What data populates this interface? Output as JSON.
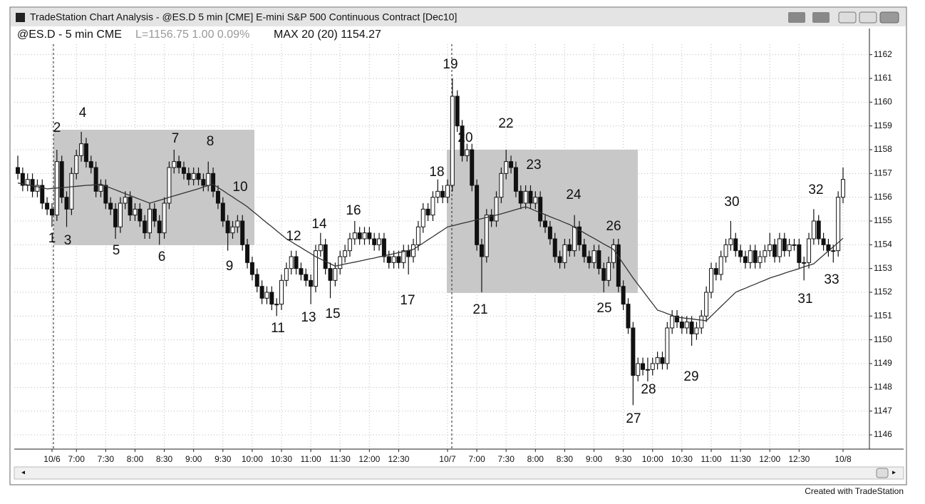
{
  "window_title": "TradeStation Chart Analysis - @ES.D 5 min [CME] E-mini S&P 500 Continuous Contract [Dec10]",
  "footer": "Created with TradeStation",
  "chart_data": {
    "type": "candlestick",
    "legend_symbol": "@ES.D - 5 min CME",
    "legend_last": "L=1156.75 1.00 0.09%",
    "up_color": "#ffffff",
    "down_color": "#111111",
    "ylim": [
      1145.4,
      1163.1
    ],
    "yticks": [
      1146,
      1147,
      1148,
      1149,
      1150,
      1151,
      1152,
      1153,
      1154,
      1155,
      1156,
      1157,
      1158,
      1159,
      1160,
      1161,
      1162
    ],
    "grid": true,
    "categories": [
      null,
      null,
      null,
      null,
      null,
      null,
      null,
      "10/6",
      null,
      null,
      null,
      null,
      "7:00",
      null,
      null,
      null,
      null,
      null,
      "7:30",
      null,
      null,
      null,
      null,
      null,
      "8:00",
      null,
      null,
      null,
      null,
      null,
      "8:30",
      null,
      null,
      null,
      null,
      null,
      "9:00",
      null,
      null,
      null,
      null,
      null,
      "9:30",
      null,
      null,
      null,
      null,
      null,
      "10:00",
      null,
      null,
      null,
      null,
      null,
      "10:30",
      null,
      null,
      null,
      null,
      null,
      "11:00",
      null,
      null,
      null,
      null,
      null,
      "11:30",
      null,
      null,
      null,
      null,
      null,
      "12:00",
      null,
      null,
      null,
      null,
      null,
      "12:30",
      null,
      null,
      null,
      null,
      null,
      null,
      null,
      null,
      null,
      "10/7",
      null,
      null,
      null,
      null,
      null,
      "7:00",
      null,
      null,
      null,
      null,
      null,
      "7:30",
      null,
      null,
      null,
      null,
      null,
      "8:00",
      null,
      null,
      null,
      null,
      null,
      "8:30",
      null,
      null,
      null,
      null,
      null,
      "9:00",
      null,
      null,
      null,
      null,
      null,
      "9:30",
      null,
      null,
      null,
      null,
      null,
      "10:00",
      null,
      null,
      null,
      null,
      null,
      "10:30",
      null,
      null,
      null,
      null,
      null,
      "11:00",
      null,
      null,
      null,
      null,
      null,
      "11:30",
      null,
      null,
      null,
      null,
      null,
      "12:00",
      null,
      null,
      null,
      null,
      null,
      "12:30",
      null,
      null,
      null,
      null,
      null,
      null,
      null,
      null,
      "10/8"
    ],
    "ohlc": [
      [
        1157.25,
        1157.75,
        1156.75,
        1157
      ],
      [
        1157,
        1157.25,
        1156.25,
        1156.5
      ],
      [
        1156.5,
        1157,
        1156.25,
        1156.75
      ],
      [
        1156.75,
        1157,
        1156,
        1156.25
      ],
      [
        1156.25,
        1156.75,
        1156,
        1156.5
      ],
      [
        1156.5,
        1156.75,
        1155.5,
        1155.75
      ],
      [
        1155.75,
        1156,
        1155.25,
        1155.5
      ],
      [
        1155.5,
        1155.75,
        1154.75,
        1155.25
      ],
      [
        1155.25,
        1158,
        1155,
        1157.5
      ],
      [
        1157.5,
        1157.75,
        1155.75,
        1156
      ],
      [
        1156,
        1156.25,
        1154.75,
        1155.5
      ],
      [
        1155.5,
        1157.25,
        1155.25,
        1157
      ],
      [
        1157,
        1158,
        1156.75,
        1157.75
      ],
      [
        1157.75,
        1158.75,
        1157.5,
        1158.25
      ],
      [
        1158.25,
        1158.5,
        1157.25,
        1157.5
      ],
      [
        1157.5,
        1157.75,
        1157,
        1157.25
      ],
      [
        1157.25,
        1157.5,
        1156,
        1156.25
      ],
      [
        1156.25,
        1156.75,
        1156,
        1156.5
      ],
      [
        1156.5,
        1156.75,
        1155.5,
        1155.75
      ],
      [
        1155.75,
        1156,
        1155.25,
        1155.5
      ],
      [
        1155.5,
        1155.75,
        1154.25,
        1154.75
      ],
      [
        1154.75,
        1156,
        1154.5,
        1155.75
      ],
      [
        1155.75,
        1156.25,
        1155.5,
        1156
      ],
      [
        1156,
        1156.25,
        1155,
        1155.25
      ],
      [
        1155.25,
        1155.75,
        1155,
        1155.5
      ],
      [
        1155.5,
        1155.75,
        1154.75,
        1155
      ],
      [
        1155,
        1155.25,
        1154.25,
        1154.5
      ],
      [
        1154.5,
        1155.75,
        1154.25,
        1155.5
      ],
      [
        1155.5,
        1155.75,
        1154.75,
        1155
      ],
      [
        1155,
        1155.25,
        1154,
        1154.5
      ],
      [
        1154.5,
        1156,
        1154.25,
        1155.75
      ],
      [
        1155.75,
        1157.5,
        1155.5,
        1157.25
      ],
      [
        1157.25,
        1158,
        1157,
        1157.5
      ],
      [
        1157.5,
        1157.75,
        1157,
        1157.25
      ],
      [
        1157.25,
        1157.5,
        1156.75,
        1157
      ],
      [
        1157,
        1157.25,
        1156.5,
        1156.75
      ],
      [
        1156.75,
        1157.25,
        1156.5,
        1157
      ],
      [
        1157,
        1157.25,
        1156.5,
        1156.75
      ],
      [
        1156.75,
        1157,
        1156.25,
        1156.5
      ],
      [
        1156.5,
        1157.5,
        1156.25,
        1157
      ],
      [
        1157,
        1157.25,
        1156,
        1156.25
      ],
      [
        1156.25,
        1156.5,
        1155.5,
        1155.75
      ],
      [
        1155.75,
        1156,
        1154.75,
        1155
      ],
      [
        1155,
        1155.25,
        1153.75,
        1154.5
      ],
      [
        1154.5,
        1155,
        1154.25,
        1154.75
      ],
      [
        1154.75,
        1155.25,
        1154.5,
        1155
      ],
      [
        1155,
        1155.25,
        1153.75,
        1154
      ],
      [
        1154,
        1154.25,
        1153,
        1153.25
      ],
      [
        1153.25,
        1153.5,
        1152.5,
        1152.75
      ],
      [
        1152.75,
        1153,
        1152,
        1152.25
      ],
      [
        1152.25,
        1152.5,
        1151.5,
        1151.75
      ],
      [
        1151.75,
        1152.25,
        1151.5,
        1152
      ],
      [
        1152,
        1152.25,
        1151.25,
        1151.5
      ],
      [
        1151.5,
        1151.75,
        1151,
        1151.5
      ],
      [
        1151.5,
        1152.75,
        1151.25,
        1152.5
      ],
      [
        1152.5,
        1153.25,
        1152.25,
        1153
      ],
      [
        1153,
        1153.75,
        1152.75,
        1153.5
      ],
      [
        1153.5,
        1153.75,
        1152.75,
        1153
      ],
      [
        1153,
        1153.25,
        1152.5,
        1152.75
      ],
      [
        1152.75,
        1153,
        1152.25,
        1152.5
      ],
      [
        1152.5,
        1152.75,
        1151.5,
        1152.25
      ],
      [
        1152.25,
        1154,
        1152,
        1153.75
      ],
      [
        1153.75,
        1154.5,
        1153.5,
        1154
      ],
      [
        1154,
        1154.25,
        1152.75,
        1153
      ],
      [
        1153,
        1153.25,
        1151.75,
        1152.5
      ],
      [
        1152.5,
        1153.25,
        1152.25,
        1153
      ],
      [
        1153,
        1153.75,
        1152.75,
        1153.5
      ],
      [
        1153.5,
        1154,
        1153.25,
        1153.75
      ],
      [
        1153.75,
        1154.5,
        1153.5,
        1154.25
      ],
      [
        1154.25,
        1155,
        1154,
        1154.5
      ],
      [
        1154.5,
        1154.75,
        1154,
        1154.25
      ],
      [
        1154.25,
        1154.75,
        1154,
        1154.5
      ],
      [
        1154.5,
        1154.75,
        1154,
        1154.25
      ],
      [
        1154.25,
        1154.5,
        1153.75,
        1154
      ],
      [
        1154,
        1154.5,
        1153.75,
        1154.25
      ],
      [
        1154.25,
        1154.5,
        1153.25,
        1153.5
      ],
      [
        1153.5,
        1153.75,
        1153,
        1153.25
      ],
      [
        1153.25,
        1153.75,
        1153,
        1153.5
      ],
      [
        1153.5,
        1153.75,
        1153,
        1153.25
      ],
      [
        1153.25,
        1154,
        1153,
        1153.75
      ],
      [
        1153.75,
        1154,
        1152.75,
        1153.5
      ],
      [
        1153.5,
        1154.25,
        1153.25,
        1154
      ],
      [
        1154,
        1155,
        1153.75,
        1154.75
      ],
      [
        1154.75,
        1155.75,
        1154.5,
        1155.5
      ],
      [
        1155.5,
        1155.75,
        1155,
        1155.25
      ],
      [
        1155.25,
        1156.25,
        1155,
        1156
      ],
      [
        1156,
        1156.75,
        1155.75,
        1156.25
      ],
      [
        1156.25,
        1156.5,
        1155.75,
        1156
      ],
      [
        1156,
        1156.75,
        1155.75,
        1156.5
      ],
      [
        1156.5,
        1161,
        1156.25,
        1160.25
      ],
      [
        1160.25,
        1160.5,
        1158.75,
        1159
      ],
      [
        1159,
        1159.25,
        1157.5,
        1157.75
      ],
      [
        1157.75,
        1158.25,
        1157.5,
        1158
      ],
      [
        1158,
        1158.25,
        1156.25,
        1156.5
      ],
      [
        1156.5,
        1156.75,
        1153.75,
        1154
      ],
      [
        1154,
        1154.25,
        1152,
        1153.5
      ],
      [
        1153.5,
        1155.5,
        1153.25,
        1155.25
      ],
      [
        1155.25,
        1155.5,
        1154.75,
        1155
      ],
      [
        1155,
        1156.25,
        1154.75,
        1156
      ],
      [
        1156,
        1157.25,
        1155.75,
        1157
      ],
      [
        1157,
        1158,
        1156.75,
        1157.5
      ],
      [
        1157.5,
        1157.75,
        1157,
        1157.25
      ],
      [
        1157.25,
        1157.5,
        1156,
        1156.25
      ],
      [
        1156.25,
        1156.5,
        1155.5,
        1155.75
      ],
      [
        1155.75,
        1156.5,
        1155.5,
        1156.25
      ],
      [
        1156.25,
        1156.5,
        1155.5,
        1155.75
      ],
      [
        1155.75,
        1156.25,
        1155.5,
        1156
      ],
      [
        1156,
        1156.25,
        1154.75,
        1155
      ],
      [
        1155,
        1155.25,
        1154.5,
        1154.75
      ],
      [
        1154.75,
        1155,
        1154,
        1154.25
      ],
      [
        1154.25,
        1154.5,
        1153.25,
        1153.5
      ],
      [
        1153.5,
        1153.75,
        1153,
        1153.25
      ],
      [
        1153.25,
        1154.25,
        1153,
        1154
      ],
      [
        1154,
        1154.25,
        1153.5,
        1153.75
      ],
      [
        1153.75,
        1155.25,
        1153.5,
        1154.75
      ],
      [
        1154.75,
        1155,
        1153.75,
        1154
      ],
      [
        1154,
        1154.25,
        1153.25,
        1153.5
      ],
      [
        1153.5,
        1153.75,
        1153,
        1153.25
      ],
      [
        1153.25,
        1154,
        1153,
        1153.75
      ],
      [
        1153.75,
        1154,
        1152.75,
        1153
      ],
      [
        1153,
        1153.25,
        1152,
        1152.5
      ],
      [
        1152.5,
        1153.5,
        1152.25,
        1153.25
      ],
      [
        1153.25,
        1154.25,
        1153,
        1154
      ],
      [
        1154,
        1154.25,
        1152,
        1152.25
      ],
      [
        1152.25,
        1152.5,
        1151.25,
        1151.5
      ],
      [
        1151.5,
        1151.75,
        1150.25,
        1150.5
      ],
      [
        1150.5,
        1150.75,
        1147.25,
        1148.5
      ],
      [
        1148.5,
        1149.25,
        1148.25,
        1149
      ],
      [
        1149,
        1149.25,
        1148.5,
        1148.75
      ],
      [
        1148.75,
        1149.25,
        1148.25,
        1148.75
      ],
      [
        1148.75,
        1149.25,
        1148.5,
        1149
      ],
      [
        1149,
        1149.5,
        1148.75,
        1149.25
      ],
      [
        1149.25,
        1149.5,
        1148.75,
        1149
      ],
      [
        1149,
        1150.75,
        1148.75,
        1150.5
      ],
      [
        1150.5,
        1151.25,
        1150.25,
        1151
      ],
      [
        1151,
        1151.25,
        1150.5,
        1150.75
      ],
      [
        1150.75,
        1151,
        1150.25,
        1150.5
      ],
      [
        1150.5,
        1151,
        1150.25,
        1150.75
      ],
      [
        1150.75,
        1151,
        1149.75,
        1150.25
      ],
      [
        1150.25,
        1150.75,
        1150,
        1150.5
      ],
      [
        1150.5,
        1151.25,
        1150.25,
        1151
      ],
      [
        1151,
        1152.25,
        1150.75,
        1152
      ],
      [
        1152,
        1153.25,
        1151.75,
        1153
      ],
      [
        1153,
        1153.25,
        1152.5,
        1152.75
      ],
      [
        1152.75,
        1153.75,
        1152.5,
        1153.5
      ],
      [
        1153.5,
        1154.25,
        1153.25,
        1154
      ],
      [
        1154,
        1155,
        1153.75,
        1154.25
      ],
      [
        1154.25,
        1154.5,
        1153.5,
        1153.75
      ],
      [
        1153.75,
        1154,
        1153.25,
        1153.5
      ],
      [
        1153.5,
        1153.75,
        1153,
        1153.25
      ],
      [
        1153.25,
        1154,
        1153,
        1153.75
      ],
      [
        1153.75,
        1154,
        1153,
        1153.25
      ],
      [
        1153.25,
        1153.75,
        1153,
        1153.5
      ],
      [
        1153.5,
        1154,
        1153.25,
        1153.75
      ],
      [
        1153.75,
        1154.5,
        1153.5,
        1154
      ],
      [
        1154,
        1154.25,
        1153.25,
        1153.5
      ],
      [
        1153.5,
        1154.5,
        1153.25,
        1154.25
      ],
      [
        1154.25,
        1154.5,
        1153.5,
        1153.75
      ],
      [
        1153.75,
        1154.25,
        1153.5,
        1154
      ],
      [
        1154,
        1154.25,
        1153.75,
        1154
      ],
      [
        1154,
        1154.25,
        1153,
        1153.25
      ],
      [
        1153.25,
        1153.5,
        1152.5,
        1153.25
      ],
      [
        1153.25,
        1154.5,
        1153,
        1154.25
      ],
      [
        1154.25,
        1155.5,
        1154,
        1155
      ],
      [
        1155,
        1155.25,
        1154,
        1154.25
      ],
      [
        1154.25,
        1154.5,
        1153.75,
        1154
      ],
      [
        1154,
        1154.25,
        1153.5,
        1153.75
      ],
      [
        1153.75,
        1154,
        1153.25,
        1153.75
      ],
      [
        1153.75,
        1156.25,
        1153.5,
        1156
      ],
      [
        1156,
        1157.25,
        1155.75,
        1156.75
      ]
    ],
    "ma": {
      "label": "MAX 20 (20) 1154.27",
      "color": "#333333",
      "values": [
        1156.6,
        1156.56,
        1156.52,
        1156.48,
        1156.44,
        1156.4,
        1156.35,
        1156.37,
        1156.39,
        1156.41,
        1156.42,
        1156.44,
        1156.46,
        1156.48,
        1156.5,
        1156.51,
        1156.53,
        1156.55,
        1156.47,
        1156.39,
        1156.31,
        1156.23,
        1156.15,
        1156.07,
        1155.99,
        1155.91,
        1155.83,
        1155.75,
        1155.81,
        1155.87,
        1155.93,
        1156,
        1156.06,
        1156.12,
        1156.18,
        1156.24,
        1156.3,
        1156.36,
        1156.43,
        1156.49,
        1156.55,
        1156.41,
        1156.28,
        1156.14,
        1156.01,
        1155.87,
        1155.74,
        1155.6,
        1155.43,
        1155.26,
        1155.09,
        1154.92,
        1154.76,
        1154.59,
        1154.42,
        1154.25,
        1154.13,
        1154,
        1153.88,
        1153.75,
        1153.63,
        1153.5,
        1153.4,
        1153.3,
        1153.2,
        1153.1,
        1153.14,
        1153.19,
        1153.23,
        1153.27,
        1153.31,
        1153.36,
        1153.4,
        1153.44,
        1153.49,
        1153.53,
        1153.58,
        1153.62,
        1153.67,
        1153.71,
        1153.76,
        1153.8,
        1153.94,
        1154.07,
        1154.21,
        1154.34,
        1154.48,
        1154.61,
        1154.75,
        1154.8,
        1154.85,
        1154.9,
        1154.95,
        1155,
        1155.05,
        1155.1,
        1155.15,
        1155.2,
        1155.25,
        1155.3,
        1155.36,
        1155.42,
        1155.48,
        1155.54,
        1155.6,
        1155.52,
        1155.43,
        1155.35,
        1155.27,
        1155.18,
        1155.1,
        1155.02,
        1154.93,
        1154.85,
        1154.73,
        1154.62,
        1154.5,
        1154.38,
        1154.27,
        1154.15,
        1154.03,
        1153.92,
        1153.8,
        1153.5,
        1153.2,
        1152.9,
        1152.6,
        1152.33,
        1152.06,
        1151.79,
        1151.52,
        1151.25,
        1151.18,
        1151.1,
        1151.03,
        1150.95,
        1150.93,
        1150.9,
        1150.88,
        1150.85,
        1150.83,
        1150.8,
        1151,
        1151.2,
        1151.4,
        1151.6,
        1151.8,
        1152,
        1152.09,
        1152.17,
        1152.26,
        1152.34,
        1152.43,
        1152.51,
        1152.6,
        1152.67,
        1152.73,
        1152.8,
        1152.87,
        1152.93,
        1153,
        1153.07,
        1153.13,
        1153.2,
        1153.38,
        1153.56,
        1153.74,
        1153.91,
        1154.09,
        1154.27
      ]
    },
    "annotations": [
      "1",
      "2",
      "3",
      "4",
      "5",
      "6",
      "7",
      "8",
      "9",
      "10",
      "11",
      "12",
      "13",
      "14",
      "15",
      "16",
      "17",
      "18",
      "19",
      "20",
      "21",
      "22",
      "23",
      "24",
      "25",
      "26",
      "27",
      "28",
      "29",
      "30",
      "31",
      "32",
      "33"
    ]
  }
}
